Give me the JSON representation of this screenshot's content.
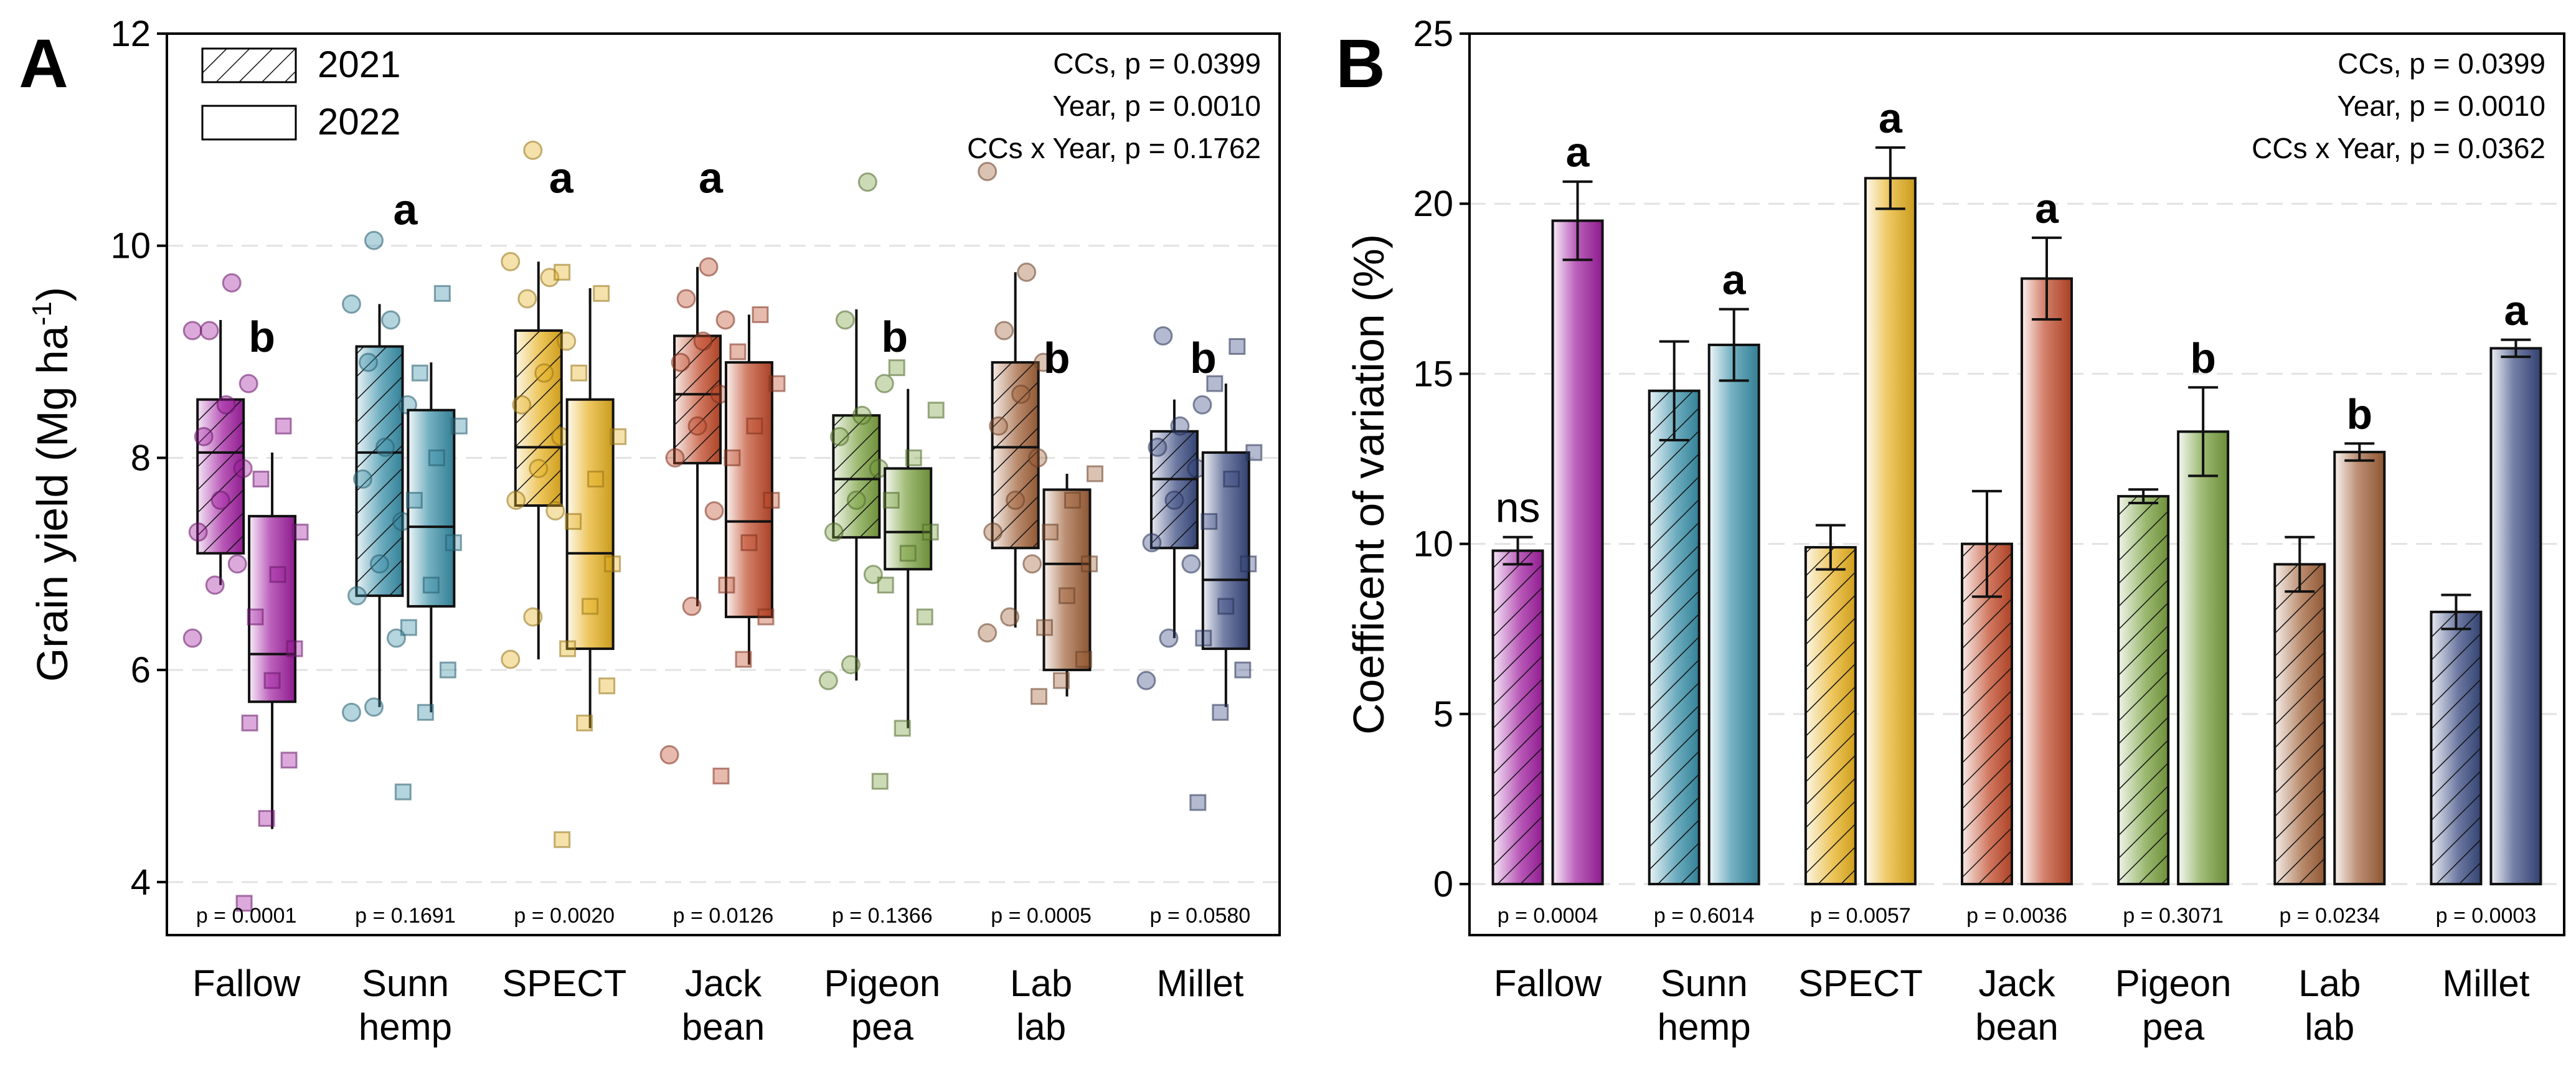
{
  "chart_data": [
    {
      "panel_label": "A",
      "type": "box",
      "ylabel": "Grain yield (Mg ha",
      "ylabel_sup": "-1",
      "ylabel_close": ")",
      "ylim": [
        3.5,
        12
      ],
      "yticks": [
        4,
        6,
        8,
        10,
        12
      ],
      "categories": [
        "Fallow",
        "Sunn hemp",
        "SPECT",
        "Jack bean",
        "Pigeon pea",
        "Lab lab",
        "Millet"
      ],
      "category_lines": [
        [
          "Fallow"
        ],
        [
          "Sunn",
          "hemp"
        ],
        [
          "SPECT"
        ],
        [
          "Jack",
          "bean"
        ],
        [
          "Pigeon",
          "pea"
        ],
        [
          "Lab",
          "lab"
        ],
        [
          "Millet"
        ]
      ],
      "legend": [
        {
          "label": "2021",
          "pattern": "hatched"
        },
        {
          "label": "2022",
          "pattern": "plain"
        }
      ],
      "stats": [
        "CCs, p = 0.0399",
        "Year, p = 0.0010",
        "CCs x Year, p = 0.1762"
      ],
      "pvalues": [
        "p = 0.0001",
        "p = 0.1691",
        "p = 0.0020",
        "p = 0.0126",
        "p = 0.1366",
        "p = 0.0005",
        "p = 0.0580"
      ],
      "letters": [
        "b",
        "a",
        "a",
        "a",
        "b",
        "b",
        "b"
      ],
      "series": [
        {
          "name": "2021",
          "boxes": [
            {
              "whislo": 6.8,
              "q1": 7.1,
              "med": 8.05,
              "q3": 8.55,
              "whishi": 9.3
            },
            {
              "whislo": 5.65,
              "q1": 6.7,
              "med": 8.05,
              "q3": 9.05,
              "whishi": 9.45
            },
            {
              "whislo": 6.1,
              "q1": 7.55,
              "med": 8.1,
              "q3": 9.2,
              "whishi": 9.85
            },
            {
              "whislo": 6.6,
              "q1": 7.95,
              "med": 8.6,
              "q3": 9.15,
              "whishi": 9.8
            },
            {
              "whislo": 5.9,
              "q1": 7.25,
              "med": 7.8,
              "q3": 8.4,
              "whishi": 9.4
            },
            {
              "whislo": 6.4,
              "q1": 7.15,
              "med": 8.1,
              "q3": 8.9,
              "whishi": 9.75
            },
            {
              "whislo": 6.3,
              "q1": 7.15,
              "med": 7.8,
              "q3": 8.25,
              "whishi": 8.55
            }
          ],
          "points": [
            [
              6.3,
              6.8,
              7.0,
              7.3,
              7.6,
              7.9,
              8.2,
              8.5,
              8.7,
              9.2,
              9.65,
              9.2
            ],
            [
              5.6,
              5.65,
              6.3,
              6.7,
              7.0,
              7.4,
              7.8,
              8.1,
              8.5,
              8.9,
              9.3,
              9.45,
              10.05
            ],
            [
              6.1,
              6.5,
              7.5,
              7.6,
              7.9,
              8.2,
              8.5,
              8.8,
              9.1,
              9.5,
              9.7,
              9.85,
              10.9
            ],
            [
              5.2,
              6.6,
              7.5,
              8.0,
              8.3,
              8.6,
              8.9,
              9.1,
              9.3,
              9.5,
              9.8
            ],
            [
              5.9,
              6.05,
              6.9,
              7.3,
              7.6,
              7.9,
              8.2,
              8.4,
              8.7,
              9.3,
              10.6
            ],
            [
              6.35,
              6.5,
              7.0,
              7.3,
              7.6,
              8.0,
              8.3,
              8.6,
              8.9,
              9.2,
              9.75,
              10.7
            ],
            [
              5.9,
              6.3,
              7.0,
              7.2,
              7.6,
              7.9,
              8.1,
              8.3,
              8.5,
              9.15
            ]
          ]
        },
        {
          "name": "2022",
          "boxes": [
            {
              "whislo": 4.5,
              "q1": 5.7,
              "med": 6.15,
              "q3": 7.45,
              "whishi": 8.05
            },
            {
              "whislo": 5.6,
              "q1": 6.6,
              "med": 7.35,
              "q3": 8.45,
              "whishi": 8.9
            },
            {
              "whislo": 5.45,
              "q1": 6.2,
              "med": 7.1,
              "q3": 8.55,
              "whishi": 9.6
            },
            {
              "whislo": 6.05,
              "q1": 6.5,
              "med": 7.4,
              "q3": 8.9,
              "whishi": 9.35
            },
            {
              "whislo": 5.45,
              "q1": 6.95,
              "med": 7.3,
              "q3": 7.9,
              "whishi": 8.65
            },
            {
              "whislo": 5.75,
              "q1": 6.0,
              "med": 7.0,
              "q3": 7.7,
              "whishi": 7.85
            },
            {
              "whislo": 5.65,
              "q1": 6.2,
              "med": 6.85,
              "q3": 8.05,
              "whishi": 8.7
            }
          ],
          "points": [
            [
              3.8,
              4.6,
              5.15,
              5.5,
              5.9,
              6.2,
              6.5,
              6.9,
              7.3,
              7.8,
              8.3
            ],
            [
              4.85,
              5.6,
              6.0,
              6.4,
              6.8,
              7.2,
              7.6,
              8.0,
              8.3,
              8.8,
              9.55
            ],
            [
              4.4,
              5.5,
              5.85,
              6.2,
              6.6,
              7.0,
              7.4,
              7.8,
              8.2,
              8.8,
              9.55,
              9.75
            ],
            [
              5.0,
              6.1,
              6.5,
              6.8,
              7.2,
              7.6,
              8.0,
              8.3,
              8.7,
              9.0,
              9.35
            ],
            [
              4.95,
              5.45,
              6.5,
              6.8,
              7.1,
              7.3,
              7.6,
              8.0,
              8.45,
              8.85
            ],
            [
              5.75,
              5.9,
              6.1,
              6.4,
              6.7,
              7.0,
              7.3,
              7.6,
              7.85
            ],
            [
              4.75,
              5.6,
              6.0,
              6.3,
              6.6,
              7.0,
              7.4,
              7.8,
              8.05,
              8.7,
              9.05
            ]
          ]
        }
      ],
      "colors": [
        "#a020a0",
        "#3a8fa8",
        "#e6b020",
        "#c04a2a",
        "#7aa040",
        "#a0623a",
        "#3a4a80"
      ]
    },
    {
      "panel_label": "B",
      "type": "bar",
      "ylabel": "Coefficent of variation (%)",
      "ylim": [
        -1.5,
        25
      ],
      "yticks": [
        0,
        5,
        10,
        15,
        20,
        25
      ],
      "categories": [
        "Fallow",
        "Sunn hemp",
        "SPECT",
        "Jack bean",
        "Pigeon pea",
        "Lab lab",
        "Millet"
      ],
      "category_lines": [
        [
          "Fallow"
        ],
        [
          "Sunn",
          "hemp"
        ],
        [
          "SPECT"
        ],
        [
          "Jack",
          "bean"
        ],
        [
          "Pigeon",
          "pea"
        ],
        [
          "Lab",
          "lab"
        ],
        [
          "Millet"
        ]
      ],
      "stats": [
        "CCs, p = 0.0399",
        "Year, p = 0.0010",
        "CCs x Year, p = 0.0362"
      ],
      "pvalues": [
        "p = 0.0004",
        "p = 0.6014",
        "p = 0.0057",
        "p = 0.0036",
        "p = 0.3071",
        "p = 0.0234",
        "p = 0.0003"
      ],
      "letters_2021": [
        "ns",
        "",
        "",
        "",
        "",
        "",
        ""
      ],
      "letters_2022": [
        "a",
        "a",
        "a",
        "a",
        "b",
        "b",
        "a"
      ],
      "series": [
        {
          "name": "2021",
          "values": [
            9.8,
            14.5,
            9.9,
            10.0,
            11.4,
            9.4,
            8.0
          ],
          "errors": [
            0.4,
            1.45,
            0.65,
            1.55,
            0.2,
            0.8,
            0.5
          ]
        },
        {
          "name": "2022",
          "values": [
            19.5,
            15.85,
            20.75,
            17.8,
            13.3,
            12.7,
            15.75
          ],
          "errors": [
            1.15,
            1.05,
            0.9,
            1.2,
            1.3,
            0.25,
            0.25
          ]
        }
      ],
      "colors": [
        "#a020a0",
        "#3a8fa8",
        "#e6b020",
        "#c04a2a",
        "#7aa040",
        "#a0623a",
        "#3a4a80"
      ]
    }
  ]
}
